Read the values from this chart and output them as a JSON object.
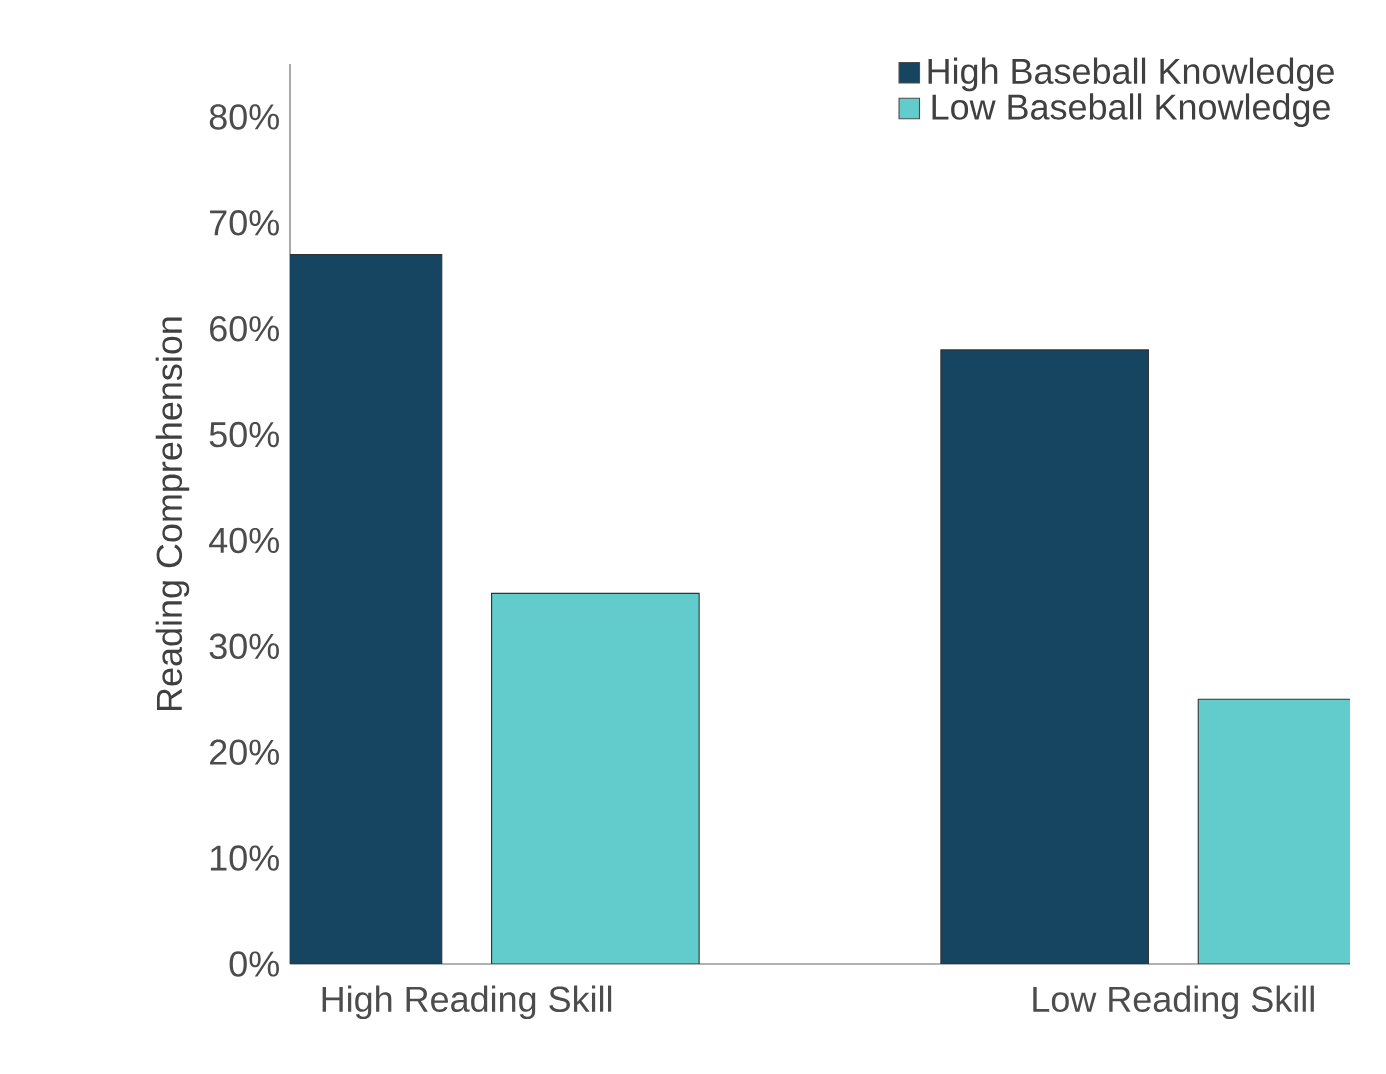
{
  "chart_data": {
    "type": "bar",
    "ylabel": "Reading Comprehension",
    "categories": [
      "High Reading Skill",
      "Low Reading Skill"
    ],
    "series": [
      {
        "name": "High Baseball Knowledge",
        "color": "#154560",
        "values": [
          67,
          58
        ]
      },
      {
        "name": "Low Baseball Knowledge",
        "color": "#62cccc",
        "values": [
          35,
          25
        ]
      }
    ],
    "ylim": [
      0,
      85
    ],
    "yticks": [
      {
        "value": 0,
        "label": "0%"
      },
      {
        "value": 10,
        "label": "10%"
      },
      {
        "value": 20,
        "label": "20%"
      },
      {
        "value": 30,
        "label": "30%"
      },
      {
        "value": 40,
        "label": "40%"
      },
      {
        "value": 50,
        "label": "50%"
      },
      {
        "value": 60,
        "label": "60%"
      },
      {
        "value": 70,
        "label": "70%"
      },
      {
        "value": 80,
        "label": "80%"
      }
    ],
    "grid": false,
    "legend": "top right"
  }
}
